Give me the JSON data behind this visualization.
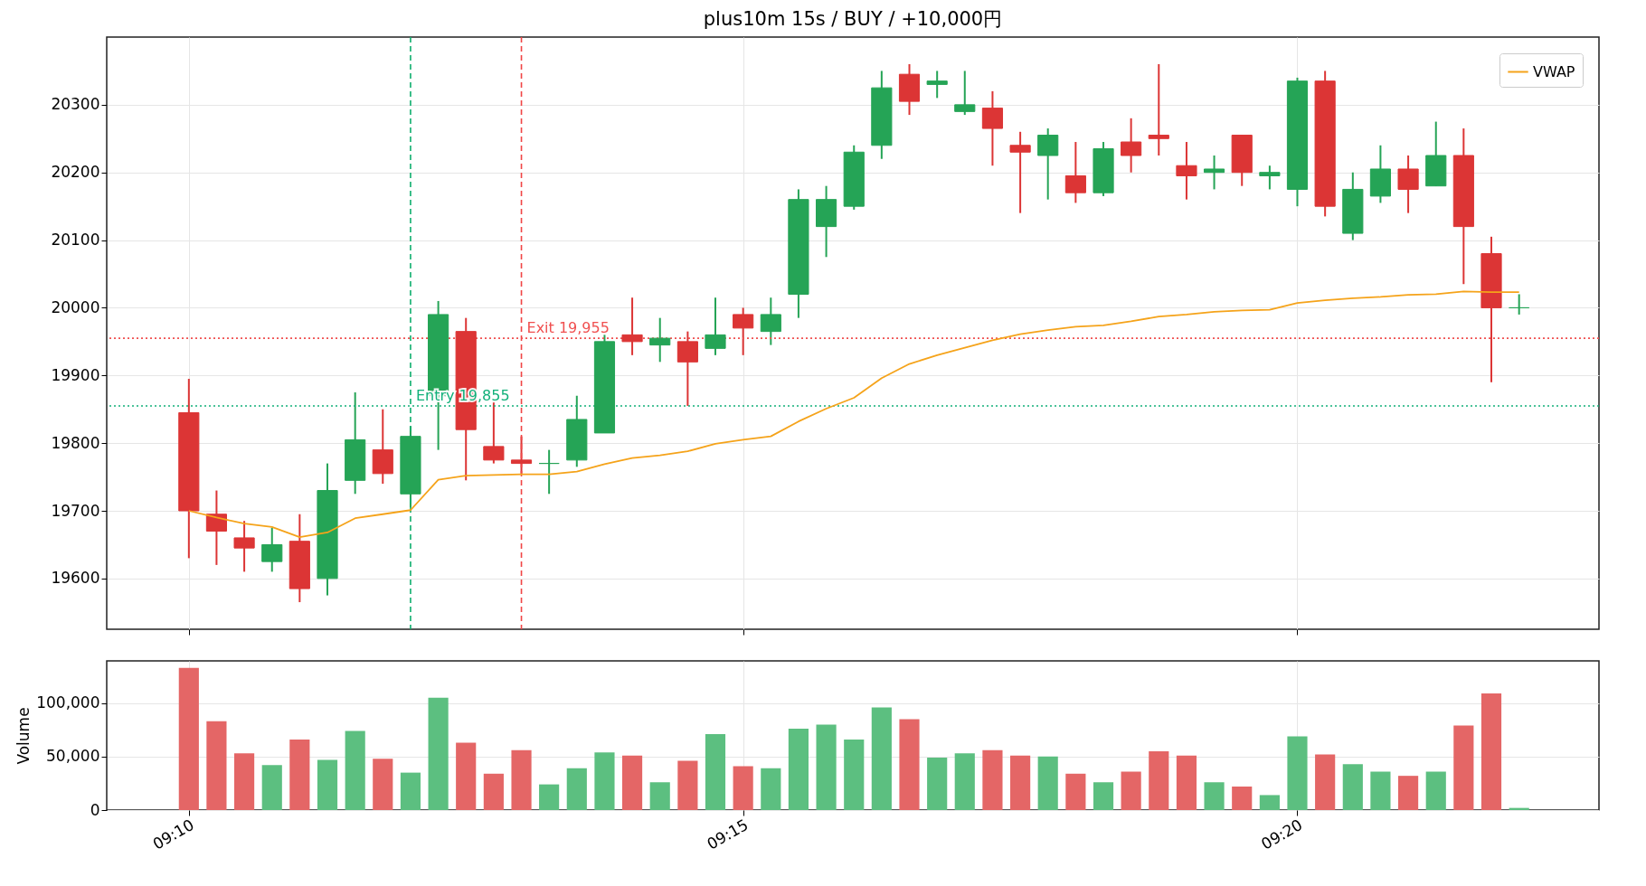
{
  "chart_data": [
    {
      "type": "candlestick",
      "title": "plus10m 15s / BUY / +10,000円",
      "x": [
        9.16667,
        9.17083,
        9.175,
        9.17917,
        9.18333,
        9.1875,
        9.19167,
        9.19583,
        9.2,
        9.20417,
        9.20833,
        9.2125,
        9.21667,
        9.22083,
        9.225,
        9.22917,
        9.23333,
        9.2375,
        9.24167,
        9.24583,
        9.25,
        9.25417,
        9.25833,
        9.2625,
        9.26667,
        9.27083,
        9.275,
        9.27917,
        9.28333,
        9.2875,
        9.29167,
        9.29583,
        9.3,
        9.30417,
        9.30833,
        9.3125,
        9.31667,
        9.32083,
        9.325,
        9.32917,
        9.33333,
        9.3375,
        9.34167,
        9.34583,
        9.35,
        9.35417,
        9.35833,
        9.3625,
        9.36667
      ],
      "ohlc": [
        [
          19845,
          19895,
          19630,
          19700
        ],
        [
          19695,
          19730,
          19620,
          19670
        ],
        [
          19660,
          19685,
          19610,
          19645
        ],
        [
          19625,
          19675,
          19610,
          19650
        ],
        [
          19655,
          19695,
          19565,
          19585
        ],
        [
          19600,
          19770,
          19575,
          19730
        ],
        [
          19745,
          19875,
          19725,
          19805
        ],
        [
          19790,
          19850,
          19740,
          19755
        ],
        [
          19725,
          19825,
          19705,
          19810
        ],
        [
          19870,
          20010,
          19790,
          19990
        ],
        [
          19965,
          19985,
          19745,
          19820
        ],
        [
          19795,
          19860,
          19770,
          19775
        ],
        [
          19775,
          19810,
          19755,
          19770
        ],
        [
          19770,
          19790,
          19725,
          19770
        ],
        [
          19775,
          19870,
          19765,
          19835
        ],
        [
          19815,
          19960,
          19815,
          19950
        ],
        [
          19960,
          20015,
          19930,
          19950
        ],
        [
          19945,
          19985,
          19920,
          19955
        ],
        [
          19950,
          19965,
          19855,
          19920
        ],
        [
          19940,
          20015,
          19930,
          19960
        ],
        [
          19990,
          20000,
          19930,
          19970
        ],
        [
          19965,
          20015,
          19945,
          19990
        ],
        [
          20020,
          20175,
          19985,
          20160
        ],
        [
          20120,
          20180,
          20075,
          20160
        ],
        [
          20150,
          20240,
          20145,
          20230
        ],
        [
          20240,
          20350,
          20220,
          20325
        ],
        [
          20345,
          20360,
          20285,
          20305
        ],
        [
          20330,
          20350,
          20310,
          20335
        ],
        [
          20290,
          20350,
          20285,
          20300
        ],
        [
          20295,
          20320,
          20210,
          20265
        ],
        [
          20240,
          20260,
          20140,
          20230
        ],
        [
          20225,
          20265,
          20160,
          20255
        ],
        [
          20195,
          20245,
          20155,
          20170
        ],
        [
          20170,
          20245,
          20165,
          20235
        ],
        [
          20245,
          20280,
          20200,
          20225
        ],
        [
          20255,
          20360,
          20225,
          20250
        ],
        [
          20210,
          20245,
          20160,
          20195
        ],
        [
          20200,
          20225,
          20175,
          20205
        ],
        [
          20255,
          20255,
          20180,
          20200
        ],
        [
          20195,
          20210,
          20175,
          20200
        ],
        [
          20175,
          20340,
          20150,
          20335
        ],
        [
          20335,
          20350,
          20135,
          20150
        ],
        [
          20110,
          20200,
          20100,
          20175
        ],
        [
          20165,
          20240,
          20155,
          20205
        ],
        [
          20205,
          20225,
          20140,
          20175
        ],
        [
          20180,
          20275,
          20180,
          20225
        ],
        [
          20225,
          20265,
          20035,
          20120
        ],
        [
          20080,
          20105,
          19890,
          20000
        ],
        [
          20000,
          20020,
          19990,
          20000
        ]
      ],
      "colors": [
        "#dc3535",
        "#dc3535",
        "#dc3535",
        "#25a456",
        "#dc3535",
        "#25a456",
        "#25a456",
        "#dc3535",
        "#25a456",
        "#25a456",
        "#dc3535",
        "#dc3535",
        "#dc3535",
        "#25a456",
        "#25a456",
        "#25a456",
        "#dc3535",
        "#25a456",
        "#dc3535",
        "#25a456",
        "#dc3535",
        "#25a456",
        "#25a456",
        "#25a456",
        "#25a456",
        "#25a456",
        "#dc3535",
        "#25a456",
        "#25a456",
        "#dc3535",
        "#dc3535",
        "#25a456",
        "#dc3535",
        "#25a456",
        "#dc3535",
        "#dc3535",
        "#dc3535",
        "#25a456",
        "#dc3535",
        "#25a456",
        "#25a456",
        "#dc3535",
        "#25a456",
        "#25a456",
        "#dc3535",
        "#25a456",
        "#dc3535",
        "#dc3535",
        "#25a456"
      ],
      "series": [
        {
          "name": "VWAP",
          "type": "line",
          "color": "#f5a31a",
          "values": [
            19700,
            19690,
            19681,
            19676,
            19661,
            19668,
            19689,
            19695,
            19701,
            19746,
            19752,
            19753,
            19754,
            19754,
            19758,
            19769,
            19778,
            19782,
            19788,
            19799,
            19805,
            19810,
            19832,
            19851,
            19867,
            19896,
            19917,
            19930,
            19941,
            19952,
            19961,
            19967,
            19972,
            19974,
            19980,
            19987,
            19990,
            19994,
            19996,
            19997,
            20007,
            20011,
            20014,
            20016,
            20019,
            20020,
            20024,
            20023,
            20023
          ]
        }
      ],
      "ref_lines": [
        {
          "axis": "x",
          "value": 9.2,
          "color": "#0fae6e",
          "line_style": "dashed"
        },
        {
          "axis": "x",
          "value": 9.21667,
          "color": "#f04545",
          "line_style": "dashed"
        },
        {
          "axis": "y",
          "value": 19855,
          "label": "Entry 19,855",
          "color": "#12b07a",
          "line_style": "dotted"
        },
        {
          "axis": "y",
          "value": 19955,
          "label": "Exit 19,955",
          "color": "#f05050",
          "line_style": "dotted"
        }
      ],
      "xlim": [
        9.155,
        9.378
      ],
      "xticks": [
        {
          "value": 9.16667,
          "label": null
        },
        {
          "value": 9.25,
          "label": null
        },
        {
          "value": 9.33333,
          "label": null
        }
      ],
      "ylim": [
        19525,
        20400
      ],
      "yticks": [
        19600,
        19700,
        19800,
        19900,
        20000,
        20100,
        20200,
        20300
      ],
      "tick_labels": "y",
      "grid": true,
      "legend": "top right"
    },
    {
      "type": "bar",
      "ylabel": "Volume",
      "x": [
        9.16667,
        9.17083,
        9.175,
        9.17917,
        9.18333,
        9.1875,
        9.19167,
        9.19583,
        9.2,
        9.20417,
        9.20833,
        9.2125,
        9.21667,
        9.22083,
        9.225,
        9.22917,
        9.23333,
        9.2375,
        9.24167,
        9.24583,
        9.25,
        9.25417,
        9.25833,
        9.2625,
        9.26667,
        9.27083,
        9.275,
        9.27917,
        9.28333,
        9.2875,
        9.29167,
        9.29583,
        9.3,
        9.30417,
        9.30833,
        9.3125,
        9.31667,
        9.32083,
        9.325,
        9.32917,
        9.33333,
        9.3375,
        9.34167,
        9.34583,
        9.35,
        9.35417,
        9.35833,
        9.3625,
        9.36667
      ],
      "values": [
        133000,
        83000,
        53000,
        42000,
        66000,
        47000,
        74000,
        48000,
        35000,
        105000,
        63000,
        34000,
        56000,
        24000,
        39000,
        54000,
        51000,
        26000,
        46000,
        71000,
        41000,
        39000,
        76000,
        80000,
        66000,
        96000,
        85000,
        49000,
        53000,
        56000,
        51000,
        50000,
        34000,
        26000,
        36000,
        55000,
        51000,
        26000,
        22000,
        14000,
        69000,
        52000,
        43000,
        36000,
        32000,
        36000,
        79000,
        109000,
        2000
      ],
      "colors": [
        "#e46666",
        "#e46666",
        "#e46666",
        "#5cbf80",
        "#e46666",
        "#5cbf80",
        "#5cbf80",
        "#e46666",
        "#5cbf80",
        "#5cbf80",
        "#e46666",
        "#e46666",
        "#e46666",
        "#5cbf80",
        "#5cbf80",
        "#5cbf80",
        "#e46666",
        "#5cbf80",
        "#e46666",
        "#5cbf80",
        "#e46666",
        "#5cbf80",
        "#5cbf80",
        "#5cbf80",
        "#5cbf80",
        "#5cbf80",
        "#e46666",
        "#5cbf80",
        "#5cbf80",
        "#e46666",
        "#e46666",
        "#5cbf80",
        "#e46666",
        "#5cbf80",
        "#e46666",
        "#e46666",
        "#e46666",
        "#5cbf80",
        "#e46666",
        "#5cbf80",
        "#5cbf80",
        "#e46666",
        "#5cbf80",
        "#5cbf80",
        "#e46666",
        "#5cbf80",
        "#e46666",
        "#e46666",
        "#5cbf80"
      ],
      "xlim": [
        9.155,
        9.378
      ],
      "xticks": [
        {
          "value": 9.16667,
          "label": "09:10"
        },
        {
          "value": 9.25,
          "label": "09:15"
        },
        {
          "value": 9.33333,
          "label": "09:20"
        }
      ],
      "ylim": [
        0,
        139500
      ],
      "yticks": [
        0,
        {
          "value": 50000,
          "label": "50,000"
        },
        {
          "value": 100000,
          "label": "100,000"
        }
      ],
      "grid": true
    }
  ]
}
